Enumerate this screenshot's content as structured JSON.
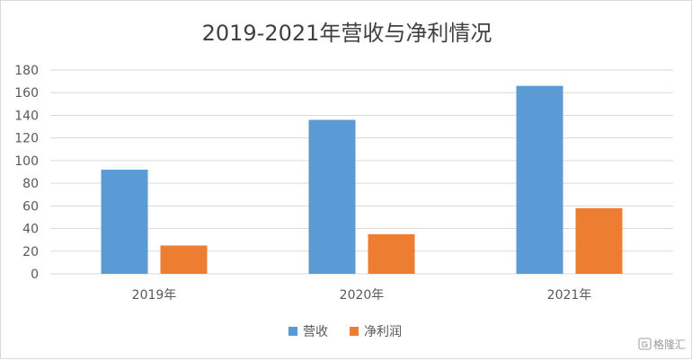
{
  "chart_data": {
    "type": "bar",
    "title": "2019-2021年营收与净利情况",
    "categories": [
      "2019年",
      "2020年",
      "2021年"
    ],
    "series": [
      {
        "name": "营收",
        "values": [
          92,
          136,
          166
        ],
        "color": "#5b9bd5"
      },
      {
        "name": "净利润",
        "values": [
          25,
          35,
          58
        ],
        "color": "#ed7d31"
      }
    ],
    "ylim": [
      0,
      180
    ],
    "yticks": [
      0,
      20,
      40,
      60,
      80,
      100,
      120,
      140,
      160,
      180
    ],
    "grid": true,
    "legend_position": "bottom",
    "xlabel": "",
    "ylabel": ""
  },
  "watermark": {
    "text": "格隆汇",
    "icon": "glh-logo-icon"
  }
}
